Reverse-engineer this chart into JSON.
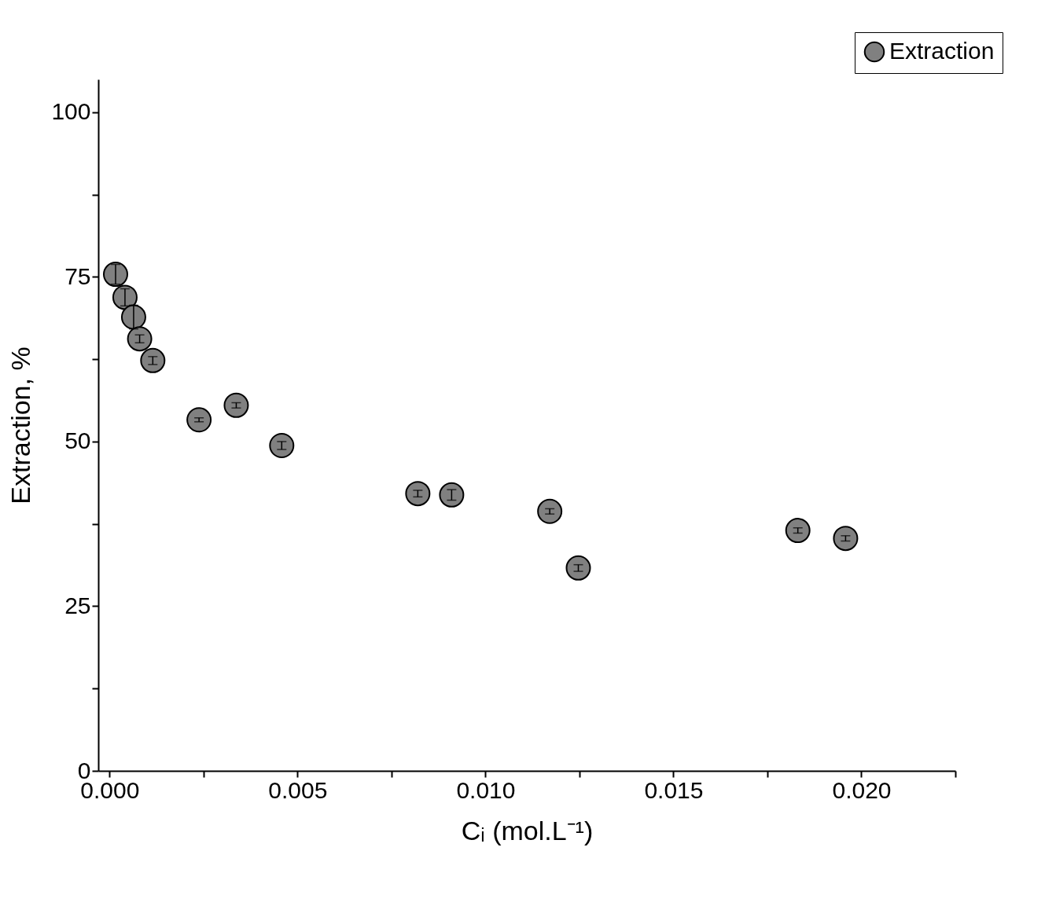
{
  "chart_data": {
    "type": "scatter",
    "xlabel": "Cᵢ (mol.L⁻¹)",
    "ylabel": "Extraction, %",
    "x": [
      0.00016,
      0.00041,
      0.00064,
      0.0008,
      0.00115,
      0.00238,
      0.00337,
      0.00458,
      0.0082,
      0.0091,
      0.01171,
      0.01247,
      0.01831,
      0.01958
    ],
    "series": [
      {
        "name": "Extraction",
        "color": "#808080",
        "values": [
          75.4,
          71.9,
          68.9,
          65.6,
          62.3,
          53.3,
          55.5,
          49.4,
          42.1,
          41.9,
          39.4,
          30.8,
          36.5,
          35.3
        ],
        "errors": [
          1.5,
          1.3,
          1.8,
          0.6,
          0.6,
          0.3,
          0.4,
          0.6,
          0.5,
          0.8,
          0.4,
          0.5,
          0.4,
          0.4
        ]
      }
    ],
    "xlim": [
      -0.0003,
      0.0225
    ],
    "xticks": [
      {
        "value": 0,
        "label": "0.000"
      },
      {
        "value": 0.0025,
        "label": null
      },
      {
        "value": 0.005,
        "label": "0.005"
      },
      {
        "value": 0.0075,
        "label": null
      },
      {
        "value": 0.01,
        "label": "0.010"
      },
      {
        "value": 0.0125,
        "label": null
      },
      {
        "value": 0.015,
        "label": "0.015"
      },
      {
        "value": 0.0175,
        "label": null
      },
      {
        "value": 0.02,
        "label": "0.020"
      },
      {
        "value": 0.0225,
        "label": null
      }
    ],
    "ylim": [
      0,
      105
    ],
    "yticks": [
      0,
      {
        "value": 12.5,
        "label": null
      },
      25,
      {
        "value": 37.5,
        "label": null
      },
      50,
      {
        "value": 62.5,
        "label": null
      },
      75,
      {
        "value": 87.5,
        "label": null
      },
      100
    ],
    "grid": false,
    "legend": "top right",
    "marker": "circle"
  }
}
